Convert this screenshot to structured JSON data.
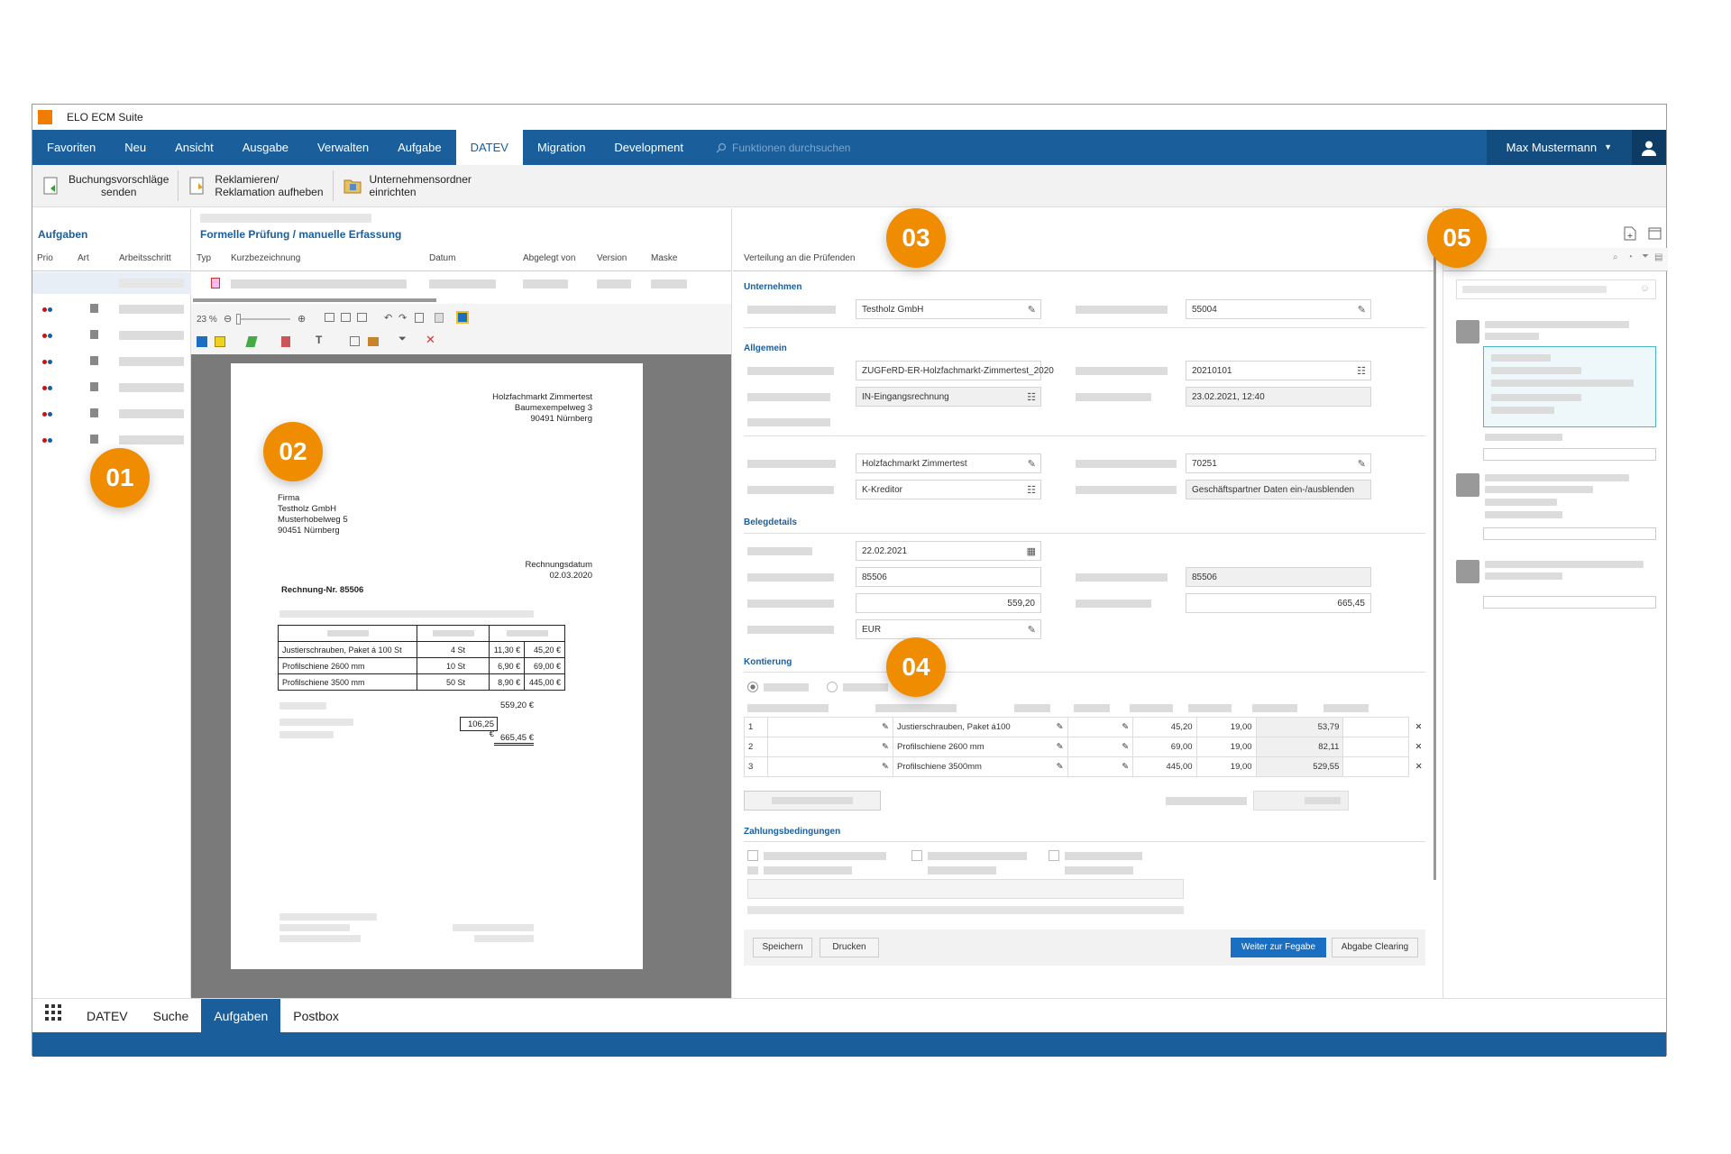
{
  "window": {
    "title": "ELO ECM Suite"
  },
  "menu": {
    "items": [
      "Favoriten",
      "Neu",
      "Ansicht",
      "Ausgabe",
      "Verwalten",
      "Aufgabe",
      "DATEV",
      "Migration",
      "Development"
    ],
    "active_index": 6,
    "search_placeholder": "Funktionen durchsuchen",
    "user": "Max Mustermann"
  },
  "toolbar": {
    "buttons": [
      {
        "line1": "Buchungsvorschläge",
        "line2": "senden"
      },
      {
        "line1": "Reklamieren/",
        "line2": "Reklamation aufheben"
      },
      {
        "line1": "Unternehmensordner",
        "line2": "einrichten"
      }
    ]
  },
  "tasks": {
    "title": "Aufgaben",
    "columns": [
      "Prio",
      "Art",
      "Arbeitsschritt"
    ]
  },
  "documents": {
    "title": "Formelle Prüfung / manuelle Erfassung",
    "columns": [
      "Typ",
      "Kurzbezeichnung",
      "Datum",
      "Abgelegt von",
      "Version",
      "Maske"
    ],
    "zoom": "23 %"
  },
  "invoice": {
    "sender": [
      "Holzfachmarkt Zimmertest",
      "Baumexempelweg 3",
      "90491 Nürnberg"
    ],
    "recipient": [
      "Firma",
      "Testholz GmbH",
      "Musterhobelweg 5",
      "90451 Nürnberg"
    ],
    "date_label": "Rechnungsdatum",
    "date": "02.03.2020",
    "number": "Rechnung-Nr. 85506",
    "rows": [
      [
        "Justierschrauben, Paket á 100 St",
        "4 St",
        "11,30 €",
        "45,20 €"
      ],
      [
        "Profilschiene 2600 mm",
        "10 St",
        "6,90 €",
        "69,00 €"
      ],
      [
        "Profilschiene 3500 mm",
        "50 St",
        "8,90 €",
        "445,00 €"
      ]
    ],
    "subtotal": "559,20 €",
    "tax": "106,25 €",
    "total": "665,45 €"
  },
  "form": {
    "header": "Verteilung an die Prüfenden",
    "sections": {
      "unternehmen": "Unternehmen",
      "allgemein": "Allgemein",
      "belegdetails": "Belegdetails",
      "kontierung": "Kontierung",
      "zahlung": "Zahlungsbedingungen"
    },
    "fields": {
      "firma": "Testholz GmbH",
      "firma_nr": "55004",
      "doc_name": "ZUGFeRD-ER-Holzfachmarkt-Zimmertest_2020",
      "doc_date": "20210101",
      "doc_type": "IN-Eingangsrechnung",
      "doc_time": "23.02.2021, 12:40",
      "partner": "Holzfachmarkt Zimmertest",
      "partner_nr": "70251",
      "partner_type": "K-Kreditor",
      "partner_toggle": "Geschäftspartner Daten ein-/ausblenden",
      "beleg_datum": "22.02.2021",
      "beleg_nr": "85506",
      "beleg_nr2": "85506",
      "netto": "559,20",
      "brutto": "665,45",
      "waehrung": "EUR"
    },
    "kontierung_rows": [
      [
        "1",
        "Justierschrauben, Paket á100",
        "45,20",
        "19,00",
        "53,79"
      ],
      [
        "2",
        "Profilschiene 2600 mm",
        "69,00",
        "19,00",
        "82,11"
      ],
      [
        "3",
        "Profilschiene  3500mm",
        "445,00",
        "19,00",
        "529,55"
      ]
    ],
    "buttons": {
      "save": "Speichern",
      "print": "Drucken",
      "next": "Weiter zur Fegabe",
      "clearing": "Abgabe Clearing"
    }
  },
  "bottom": {
    "tabs": [
      "DATEV",
      "Suche",
      "Aufgaben",
      "Postbox"
    ],
    "active_index": 2
  },
  "badges": [
    "01",
    "02",
    "03",
    "04",
    "05"
  ]
}
